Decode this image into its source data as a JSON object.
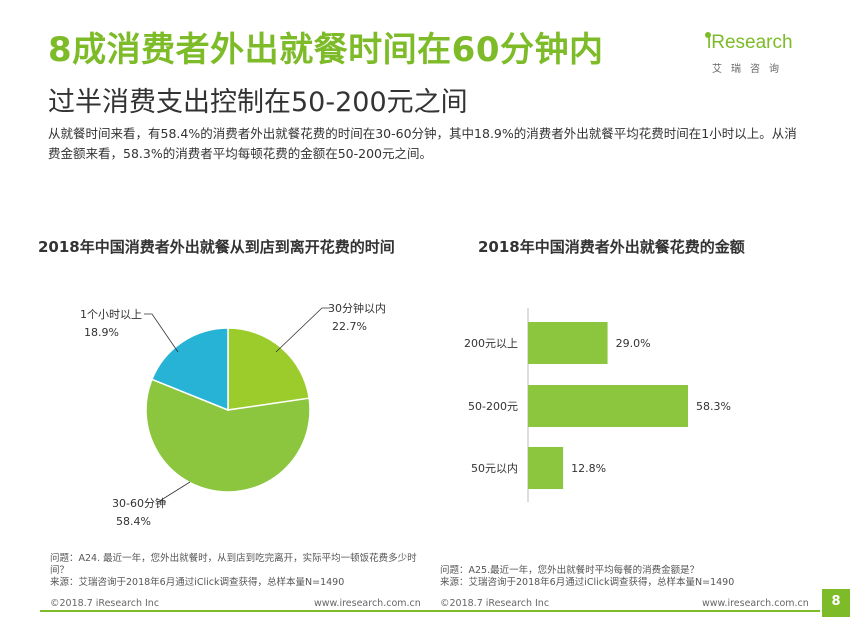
{
  "header": {
    "title": "8成消费者外出就餐时间在60分钟内",
    "subtitle": "过半消费支出控制在50-200元之间",
    "logo": {
      "main": "iResearch",
      "sub": "艾瑞咨询"
    }
  },
  "description": "从就餐时间来看，有58.4%的消费者外出就餐花费的时间在30-60分钟，其中18.9%的消费者外出就餐平均花费时间在1小时以上。从消费金额来看，58.3%的消费者平均每顿花费的金额在50-200元之间。",
  "colors": {
    "brand_green": "#7dbb28",
    "pie_light": "#9ccc2c",
    "pie_mid": "#8cc63f",
    "pie_blue": "#27b3d6",
    "bar": "#8cc63f"
  },
  "chart_data": [
    {
      "type": "pie",
      "title": "2018年中国消费者外出就餐从到店到离开花费的时间",
      "slices": [
        {
          "label": "30分钟以内",
          "value_label": "22.7%",
          "value": 22.7,
          "color": "#9ccc2c"
        },
        {
          "label": "30-60分钟",
          "value_label": "58.4%",
          "value": 58.4,
          "color": "#8cc63f"
        },
        {
          "label": "1个小时以上",
          "value_label": "18.9%",
          "value": 18.9,
          "color": "#27b3d6"
        }
      ]
    },
    {
      "type": "bar",
      "orientation": "horizontal",
      "title": "2018年中国消费者外出就餐花费的金额",
      "categories": [
        "200元以上",
        "50-200元",
        "50元以内"
      ],
      "values": [
        29.0,
        58.3,
        12.8
      ],
      "value_labels": [
        "29.0%",
        "58.3%",
        "12.8%"
      ],
      "color": "#8cc63f"
    }
  ],
  "notes": {
    "left_question": "问题：A24. 最近一年，您外出就餐时，从到店到吃完离开，实际平均一顿饭花费多少时间？",
    "left_source": "来源：艾瑞咨询于2018年6月通过iClick调查获得，总样本量N=1490",
    "right_question": "问题：A25.最近一年，您外出就餐时平均每餐的消费金额是？",
    "right_source": "来源：艾瑞咨询于2018年6月通过iClick调查获得，总样本量N=1490"
  },
  "footer": {
    "copyright": "©2018.7 iResearch Inc",
    "url": "www.iresearch.com.cn",
    "page": "8"
  }
}
